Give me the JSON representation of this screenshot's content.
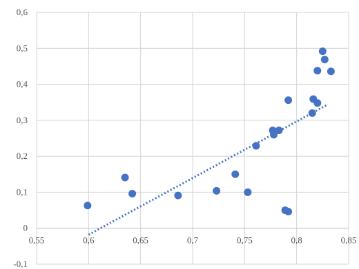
{
  "chart_data": {
    "type": "scatter",
    "title": "",
    "xlabel": "",
    "ylabel": "",
    "xlim": [
      0.55,
      0.85
    ],
    "ylim": [
      -0.1,
      0.6
    ],
    "x_ticks": [
      "0,55",
      "0,6",
      "0,65",
      "0,7",
      "0,75",
      "0,8",
      "0,85"
    ],
    "y_ticks": [
      "-0,1",
      "0",
      "0,1",
      "0,2",
      "0,3",
      "0,4",
      "0,5",
      "0,6"
    ],
    "grid": true,
    "legend": "none",
    "colors": {
      "points": "#4472c4",
      "trendline": "#4472c4",
      "grid": "#d4d4d4"
    },
    "points": [
      {
        "x": 0.599,
        "y": 0.063
      },
      {
        "x": 0.635,
        "y": 0.141
      },
      {
        "x": 0.642,
        "y": 0.096
      },
      {
        "x": 0.686,
        "y": 0.091
      },
      {
        "x": 0.723,
        "y": 0.104
      },
      {
        "x": 0.741,
        "y": 0.15
      },
      {
        "x": 0.753,
        "y": 0.1
      },
      {
        "x": 0.761,
        "y": 0.229
      },
      {
        "x": 0.777,
        "y": 0.272
      },
      {
        "x": 0.778,
        "y": 0.26
      },
      {
        "x": 0.783,
        "y": 0.272
      },
      {
        "x": 0.789,
        "y": 0.05
      },
      {
        "x": 0.792,
        "y": 0.046
      },
      {
        "x": 0.792,
        "y": 0.356
      },
      {
        "x": 0.815,
        "y": 0.32
      },
      {
        "x": 0.816,
        "y": 0.359
      },
      {
        "x": 0.82,
        "y": 0.348
      },
      {
        "x": 0.82,
        "y": 0.438
      },
      {
        "x": 0.825,
        "y": 0.492
      },
      {
        "x": 0.827,
        "y": 0.469
      },
      {
        "x": 0.833,
        "y": 0.436
      }
    ],
    "trendline": {
      "type": "linear",
      "x_range": [
        0.6,
        0.83
      ],
      "y_range": [
        -0.018,
        0.344
      ]
    }
  }
}
